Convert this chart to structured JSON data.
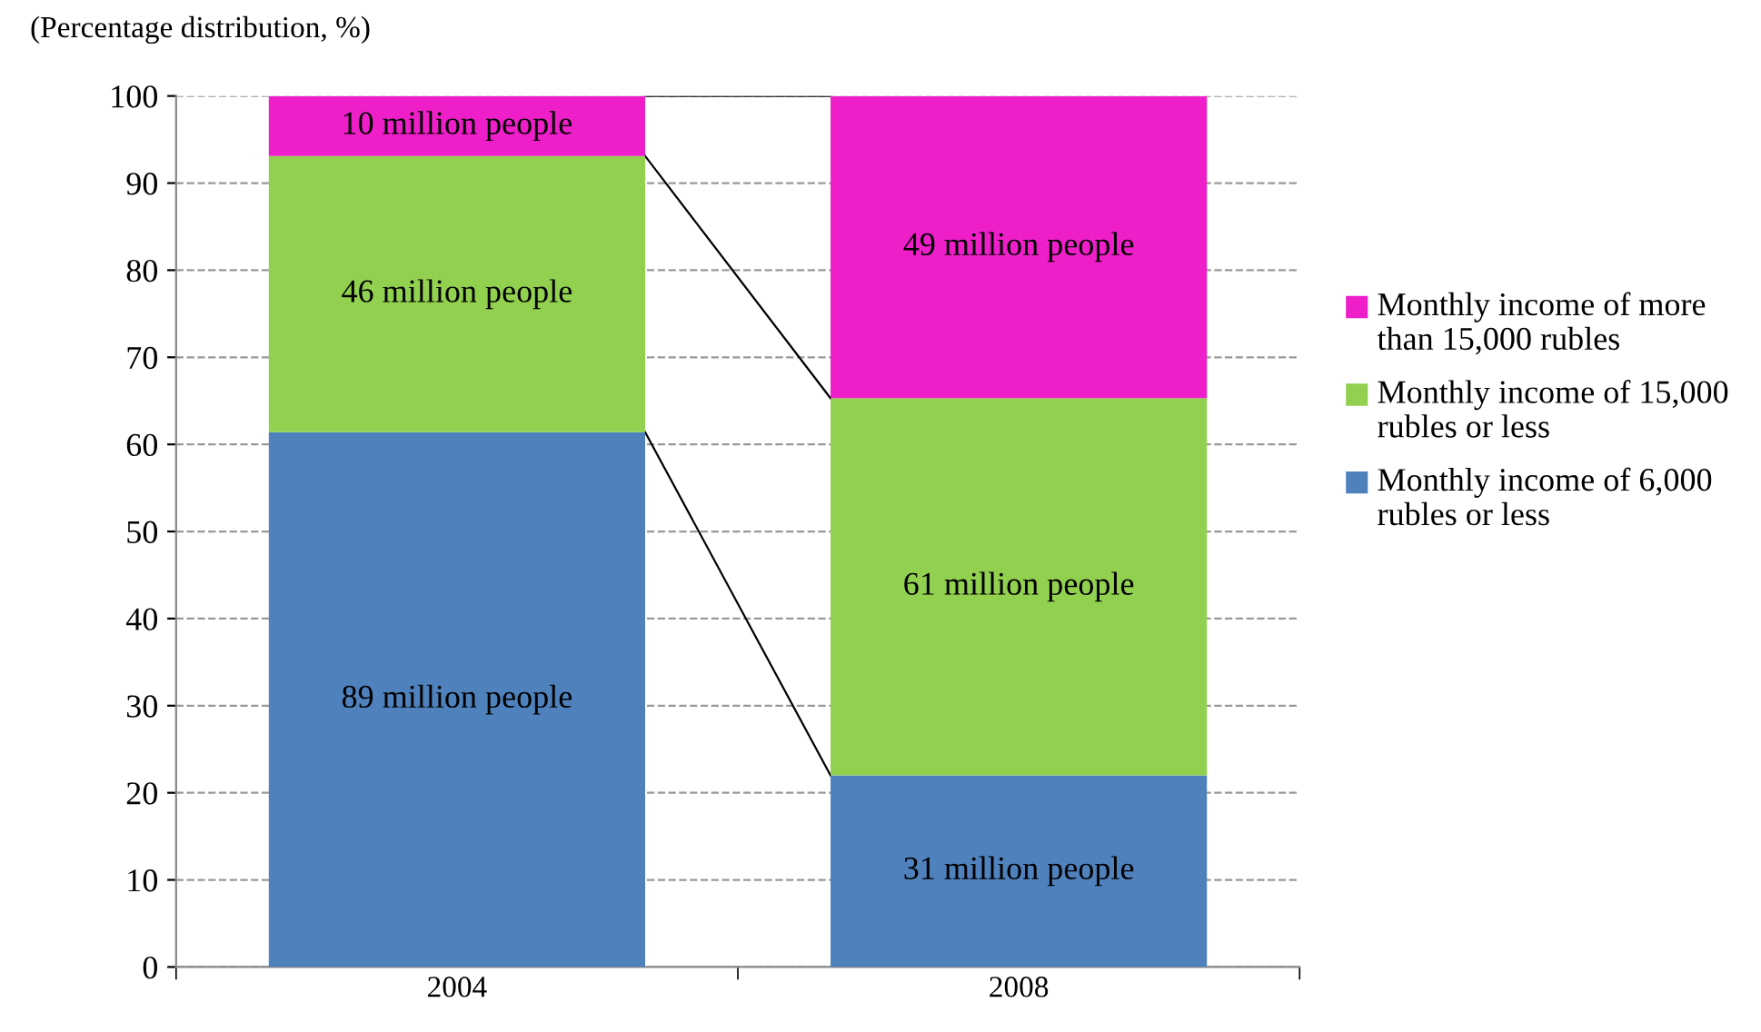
{
  "chart_data": {
    "type": "bar",
    "stacked": true,
    "ylabel": "(Percentage distribution, %)",
    "categories": [
      "2004",
      "2008"
    ],
    "series": [
      {
        "name": "Monthly income of 6,000 rubles or less",
        "color": "#4f81bd",
        "values": [
          61.4,
          22.0
        ]
      },
      {
        "name": "Monthly income of 15,000 rubles or less",
        "color": "#92d050",
        "values": [
          31.7,
          43.3
        ]
      },
      {
        "name": "Monthly income of more than 15,000 rubles",
        "color": "#ee1fc8",
        "values": [
          6.9,
          34.7
        ]
      }
    ],
    "annotations": [
      "89 million people",
      "31 million people",
      "46 million people",
      "61 million people",
      "10 million people",
      "49 million people"
    ],
    "ylim": [
      0,
      100
    ],
    "yticks": [
      0,
      10,
      20,
      30,
      40,
      50,
      60,
      70,
      80,
      90,
      100
    ],
    "grid": "y",
    "legend": "right"
  }
}
